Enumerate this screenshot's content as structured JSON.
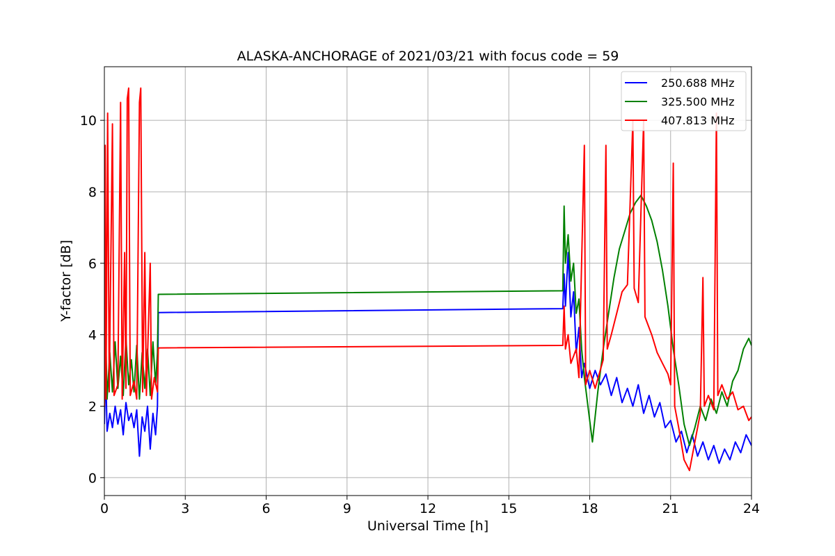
{
  "chart_data": {
    "type": "line",
    "title": "ALASKA-ANCHORAGE of 2021/03/21 with focus code = 59",
    "xlabel": "Universal Time [h]",
    "ylabel": "Y-factor [dB]",
    "xlim": [
      0,
      24
    ],
    "ylim": [
      -0.5,
      11.5
    ],
    "xticks": [
      0,
      3,
      6,
      9,
      12,
      15,
      18,
      21,
      24
    ],
    "yticks": [
      0,
      2,
      4,
      6,
      8,
      10
    ],
    "grid": true,
    "legend_position": "top-right",
    "series": [
      {
        "name": "250.688 MHz",
        "color": "#0000ff",
        "points": [
          [
            0.0,
            1.5
          ],
          [
            0.05,
            3.0
          ],
          [
            0.1,
            1.3
          ],
          [
            0.2,
            1.8
          ],
          [
            0.3,
            1.4
          ],
          [
            0.4,
            2.0
          ],
          [
            0.5,
            1.5
          ],
          [
            0.6,
            1.9
          ],
          [
            0.7,
            1.2
          ],
          [
            0.8,
            2.1
          ],
          [
            0.9,
            1.6
          ],
          [
            1.0,
            1.8
          ],
          [
            1.1,
            1.4
          ],
          [
            1.2,
            1.9
          ],
          [
            1.3,
            0.6
          ],
          [
            1.4,
            1.7
          ],
          [
            1.5,
            1.3
          ],
          [
            1.6,
            2.0
          ],
          [
            1.7,
            0.8
          ],
          [
            1.8,
            1.8
          ],
          [
            1.9,
            1.2
          ],
          [
            1.97,
            2.0
          ],
          [
            2.0,
            4.62
          ],
          [
            17.0,
            4.73
          ],
          [
            17.05,
            5.7
          ],
          [
            17.1,
            4.8
          ],
          [
            17.2,
            6.3
          ],
          [
            17.3,
            4.5
          ],
          [
            17.4,
            5.2
          ],
          [
            17.5,
            3.5
          ],
          [
            17.6,
            4.2
          ],
          [
            17.7,
            2.8
          ],
          [
            17.8,
            3.2
          ],
          [
            18.0,
            2.5
          ],
          [
            18.2,
            3.0
          ],
          [
            18.4,
            2.6
          ],
          [
            18.6,
            2.9
          ],
          [
            18.8,
            2.3
          ],
          [
            19.0,
            2.8
          ],
          [
            19.2,
            2.1
          ],
          [
            19.4,
            2.5
          ],
          [
            19.6,
            2.0
          ],
          [
            19.8,
            2.6
          ],
          [
            20.0,
            1.8
          ],
          [
            20.2,
            2.3
          ],
          [
            20.4,
            1.7
          ],
          [
            20.6,
            2.1
          ],
          [
            20.8,
            1.4
          ],
          [
            21.0,
            1.6
          ],
          [
            21.2,
            1.0
          ],
          [
            21.4,
            1.3
          ],
          [
            21.6,
            0.7
          ],
          [
            21.8,
            1.2
          ],
          [
            22.0,
            0.6
          ],
          [
            22.2,
            1.0
          ],
          [
            22.4,
            0.5
          ],
          [
            22.6,
            0.9
          ],
          [
            22.8,
            0.4
          ],
          [
            23.0,
            0.8
          ],
          [
            23.2,
            0.5
          ],
          [
            23.4,
            1.0
          ],
          [
            23.6,
            0.7
          ],
          [
            23.8,
            1.2
          ],
          [
            24.0,
            0.9
          ]
        ]
      },
      {
        "name": "325.500 MHz",
        "color": "#008000",
        "points": [
          [
            0.0,
            2.0
          ],
          [
            0.05,
            4.0
          ],
          [
            0.1,
            2.2
          ],
          [
            0.2,
            3.5
          ],
          [
            0.3,
            2.4
          ],
          [
            0.4,
            3.8
          ],
          [
            0.5,
            2.5
          ],
          [
            0.6,
            3.4
          ],
          [
            0.7,
            2.3
          ],
          [
            0.8,
            3.9
          ],
          [
            0.9,
            2.6
          ],
          [
            1.0,
            3.3
          ],
          [
            1.1,
            2.4
          ],
          [
            1.2,
            3.7
          ],
          [
            1.3,
            2.2
          ],
          [
            1.4,
            3.5
          ],
          [
            1.5,
            2.5
          ],
          [
            1.6,
            3.6
          ],
          [
            1.7,
            2.3
          ],
          [
            1.8,
            3.8
          ],
          [
            1.9,
            2.6
          ],
          [
            1.97,
            3.5
          ],
          [
            2.0,
            5.13
          ],
          [
            17.0,
            5.23
          ],
          [
            17.05,
            7.6
          ],
          [
            17.1,
            6.0
          ],
          [
            17.2,
            6.8
          ],
          [
            17.3,
            5.5
          ],
          [
            17.4,
            6.0
          ],
          [
            17.5,
            4.6
          ],
          [
            17.6,
            5.0
          ],
          [
            17.7,
            3.6
          ],
          [
            17.8,
            2.8
          ],
          [
            18.0,
            1.6
          ],
          [
            18.1,
            1.0
          ],
          [
            18.3,
            2.4
          ],
          [
            18.5,
            3.6
          ],
          [
            18.7,
            4.6
          ],
          [
            18.9,
            5.6
          ],
          [
            19.1,
            6.4
          ],
          [
            19.3,
            6.9
          ],
          [
            19.5,
            7.4
          ],
          [
            19.7,
            7.7
          ],
          [
            19.9,
            7.9
          ],
          [
            20.1,
            7.6
          ],
          [
            20.3,
            7.2
          ],
          [
            20.5,
            6.6
          ],
          [
            20.7,
            5.8
          ],
          [
            20.9,
            4.8
          ],
          [
            21.1,
            3.6
          ],
          [
            21.3,
            2.6
          ],
          [
            21.5,
            1.5
          ],
          [
            21.7,
            0.9
          ],
          [
            21.9,
            1.4
          ],
          [
            22.1,
            2.0
          ],
          [
            22.3,
            1.6
          ],
          [
            22.5,
            2.2
          ],
          [
            22.7,
            1.8
          ],
          [
            22.9,
            2.4
          ],
          [
            23.1,
            2.0
          ],
          [
            23.3,
            2.7
          ],
          [
            23.5,
            3.0
          ],
          [
            23.7,
            3.6
          ],
          [
            23.9,
            3.9
          ],
          [
            24.0,
            3.7
          ]
        ]
      },
      {
        "name": "407.813 MHz",
        "color": "#ff0000",
        "points": [
          [
            0.0,
            2.0
          ],
          [
            0.03,
            9.3
          ],
          [
            0.06,
            2.2
          ],
          [
            0.12,
            10.2
          ],
          [
            0.18,
            2.4
          ],
          [
            0.3,
            9.9
          ],
          [
            0.36,
            2.3
          ],
          [
            0.5,
            2.6
          ],
          [
            0.6,
            10.5
          ],
          [
            0.66,
            2.2
          ],
          [
            0.75,
            6.3
          ],
          [
            0.8,
            2.5
          ],
          [
            0.85,
            10.6
          ],
          [
            0.9,
            10.9
          ],
          [
            0.96,
            2.3
          ],
          [
            1.1,
            2.7
          ],
          [
            1.2,
            2.2
          ],
          [
            1.3,
            10.5
          ],
          [
            1.35,
            10.9
          ],
          [
            1.42,
            2.4
          ],
          [
            1.5,
            6.3
          ],
          [
            1.56,
            2.3
          ],
          [
            1.7,
            6.0
          ],
          [
            1.75,
            2.2
          ],
          [
            1.85,
            2.8
          ],
          [
            1.97,
            2.4
          ],
          [
            2.0,
            3.63
          ],
          [
            17.0,
            3.7
          ],
          [
            17.05,
            4.8
          ],
          [
            17.1,
            3.6
          ],
          [
            17.2,
            4.0
          ],
          [
            17.3,
            3.2
          ],
          [
            17.5,
            3.6
          ],
          [
            17.6,
            2.8
          ],
          [
            17.8,
            9.3
          ],
          [
            17.85,
            2.6
          ],
          [
            18.0,
            3.0
          ],
          [
            18.2,
            2.5
          ],
          [
            18.5,
            3.3
          ],
          [
            18.6,
            9.3
          ],
          [
            18.65,
            3.6
          ],
          [
            18.8,
            4.0
          ],
          [
            19.0,
            4.6
          ],
          [
            19.2,
            5.2
          ],
          [
            19.4,
            5.4
          ],
          [
            19.6,
            10.0
          ],
          [
            19.65,
            5.3
          ],
          [
            19.8,
            4.9
          ],
          [
            20.0,
            10.0
          ],
          [
            20.05,
            4.5
          ],
          [
            20.3,
            4.0
          ],
          [
            20.5,
            3.5
          ],
          [
            20.7,
            3.2
          ],
          [
            20.9,
            2.9
          ],
          [
            21.0,
            2.6
          ],
          [
            21.1,
            8.8
          ],
          [
            21.15,
            2.0
          ],
          [
            21.3,
            1.4
          ],
          [
            21.5,
            0.5
          ],
          [
            21.7,
            0.2
          ],
          [
            21.9,
            1.0
          ],
          [
            22.1,
            1.8
          ],
          [
            22.2,
            5.6
          ],
          [
            22.25,
            2.0
          ],
          [
            22.4,
            2.3
          ],
          [
            22.6,
            1.9
          ],
          [
            22.7,
            10.2
          ],
          [
            22.75,
            2.3
          ],
          [
            22.9,
            2.6
          ],
          [
            23.1,
            2.2
          ],
          [
            23.3,
            2.4
          ],
          [
            23.5,
            1.9
          ],
          [
            23.7,
            2.0
          ],
          [
            23.9,
            1.6
          ],
          [
            24.0,
            1.7
          ]
        ]
      }
    ]
  }
}
